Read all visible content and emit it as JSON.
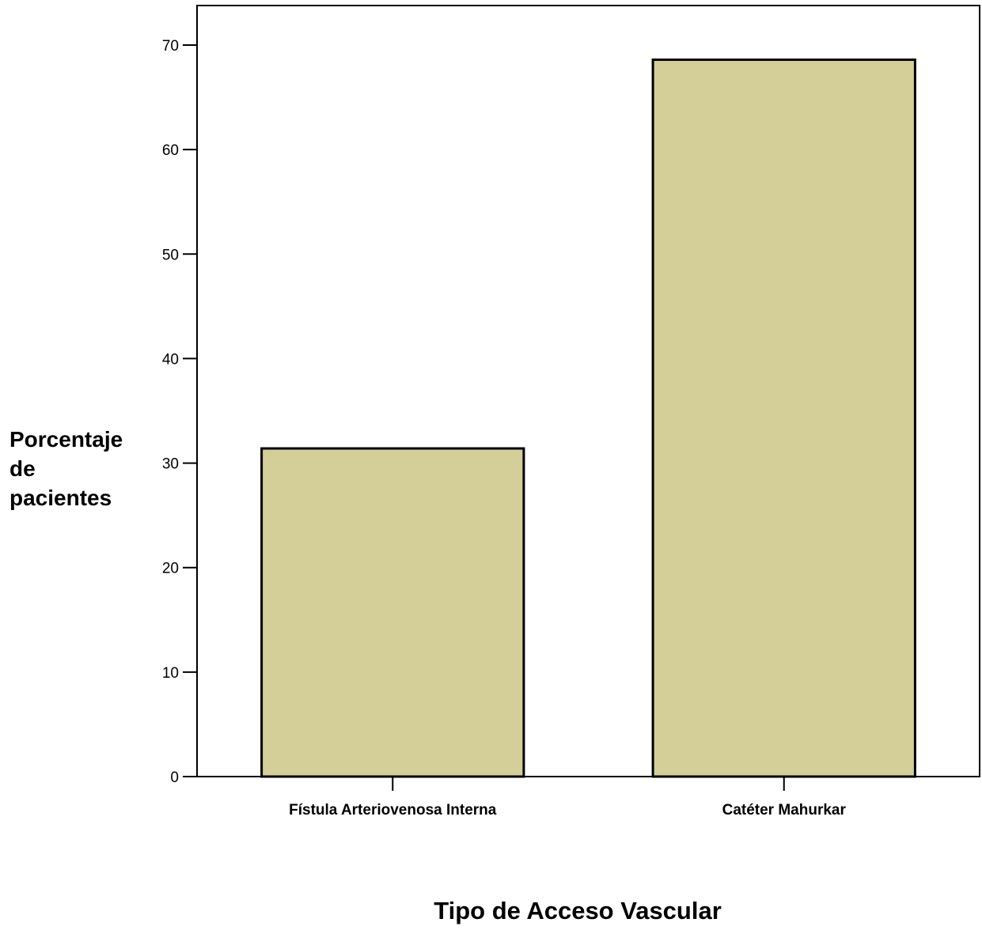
{
  "chart_data": {
    "type": "bar",
    "categories": [
      "Fístula Arteriovenosa Interna",
      "Catéter Mahurkar"
    ],
    "values": [
      31.4,
      68.6
    ],
    "title": "",
    "xlabel": "Tipo de Acceso Vascular",
    "ylabel_lines": [
      "Porcentaje",
      "de",
      "pacientes"
    ],
    "ylim": [
      0,
      74
    ],
    "yticks": [
      0,
      10,
      20,
      30,
      40,
      50,
      60,
      70
    ],
    "grid": false,
    "bar_color": "#d4ce98",
    "bar_edge_color": "#000000"
  }
}
